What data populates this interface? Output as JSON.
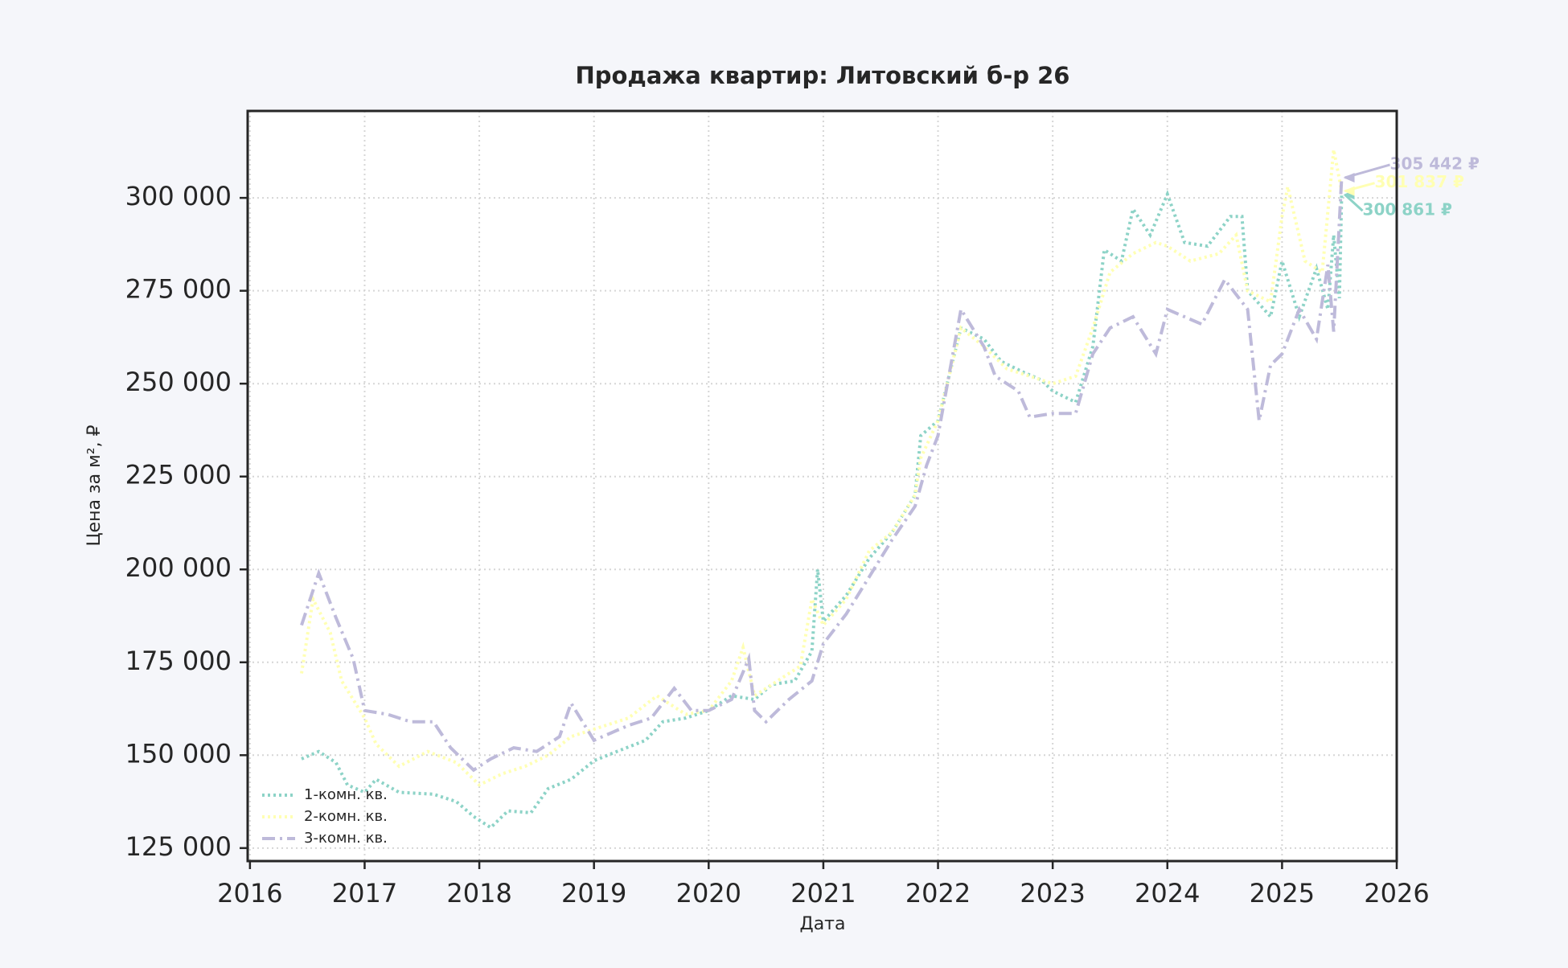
{
  "chart_data": {
    "type": "line",
    "title": "Продажа квартир: Литовский б-р 26",
    "xlabel": "Дата",
    "ylabel": "Цена за м², ₽",
    "xlim": [
      2015.98,
      2026
    ],
    "xticks": [
      2016,
      2017,
      2018,
      2019,
      2020,
      2021,
      2022,
      2023,
      2024,
      2025,
      2026
    ],
    "ylim": [
      121500,
      323400
    ],
    "yticks": [
      {
        "value": 125000,
        "label": "125 000"
      },
      {
        "value": 150000,
        "label": "150 000"
      },
      {
        "value": 175000,
        "label": "175 000"
      },
      {
        "value": 200000,
        "label": "200 000"
      },
      {
        "value": 225000,
        "label": "225 000"
      },
      {
        "value": 250000,
        "label": "250 000"
      },
      {
        "value": 275000,
        "label": "275 000"
      },
      {
        "value": 300000,
        "label": "300 000"
      }
    ],
    "grid": true,
    "legend": "lower left",
    "series": [
      {
        "name": "1-комн. кв.",
        "color": "#8dd3c7",
        "linestyle": "dotted",
        "end_label": "300 861 ₽",
        "x": [
          2016.45,
          2016.6,
          2016.75,
          2016.85,
          2017.0,
          2017.1,
          2017.3,
          2017.6,
          2017.8,
          2017.95,
          2018.1,
          2018.25,
          2018.45,
          2018.6,
          2018.8,
          2019.0,
          2019.2,
          2019.45,
          2019.6,
          2019.8,
          2020.0,
          2020.2,
          2020.4,
          2020.55,
          2020.75,
          2020.9,
          2020.95,
          2021.0,
          2021.2,
          2021.4,
          2021.6,
          2021.8,
          2021.85,
          2022.0,
          2022.2,
          2022.4,
          2022.55,
          2022.75,
          2022.9,
          2023.0,
          2023.2,
          2023.35,
          2023.45,
          2023.6,
          2023.7,
          2023.85,
          2024.0,
          2024.15,
          2024.35,
          2024.55,
          2024.65,
          2024.7,
          2024.9,
          2025.0,
          2025.15,
          2025.3,
          2025.4,
          2025.45,
          2025.5,
          2025.52
        ],
        "values": [
          149000,
          151000,
          148000,
          142000,
          140000,
          143500,
          140000,
          139500,
          137500,
          133500,
          130500,
          135000,
          134500,
          141000,
          143500,
          148500,
          151000,
          154000,
          159000,
          160000,
          162000,
          166000,
          165000,
          169000,
          170000,
          178000,
          200000,
          186000,
          193000,
          203000,
          210000,
          220000,
          236000,
          240000,
          265000,
          262000,
          256000,
          253000,
          251000,
          248000,
          245000,
          260000,
          286000,
          283000,
          297000,
          290000,
          301000,
          288000,
          287000,
          295000,
          295000,
          275000,
          268000,
          283000,
          268000,
          281000,
          270000,
          290000,
          273000,
          300861
        ]
      },
      {
        "name": "2-комн. кв.",
        "color": "#ffffb3",
        "linestyle": "dotted",
        "end_label": "301 837 ₽",
        "x": [
          2016.45,
          2016.55,
          2016.7,
          2016.8,
          2017.0,
          2017.1,
          2017.3,
          2017.55,
          2017.8,
          2018.0,
          2018.2,
          2018.4,
          2018.6,
          2018.8,
          2019.0,
          2019.3,
          2019.55,
          2019.8,
          2020.0,
          2020.2,
          2020.3,
          2020.4,
          2020.6,
          2020.8,
          2020.9,
          2021.0,
          2021.2,
          2021.4,
          2021.6,
          2021.8,
          2021.85,
          2022.0,
          2022.2,
          2022.4,
          2022.6,
          2022.8,
          2023.0,
          2023.2,
          2023.35,
          2023.5,
          2023.7,
          2023.9,
          2024.0,
          2024.2,
          2024.45,
          2024.6,
          2024.7,
          2024.9,
          2025.0,
          2025.05,
          2025.2,
          2025.35,
          2025.45,
          2025.52
        ],
        "values": [
          172000,
          192000,
          183000,
          170000,
          160000,
          153000,
          147000,
          151000,
          148000,
          142000,
          145000,
          147000,
          150000,
          155000,
          157000,
          160000,
          166000,
          161000,
          162000,
          170000,
          179000,
          166000,
          170000,
          174000,
          192000,
          185000,
          192000,
          205000,
          210000,
          220000,
          230000,
          240000,
          265000,
          260000,
          254000,
          252000,
          250000,
          252000,
          265000,
          280000,
          285000,
          288000,
          287000,
          283000,
          285000,
          290000,
          275000,
          272000,
          295000,
          303000,
          283000,
          280000,
          313000,
          301837
        ]
      },
      {
        "name": "3-комн. кв.",
        "color": "#bebada",
        "linestyle": "dashdot",
        "end_label": "305 442 ₽",
        "x": [
          2016.45,
          2016.6,
          2016.75,
          2016.9,
          2017.0,
          2017.2,
          2017.4,
          2017.6,
          2017.75,
          2017.95,
          2018.1,
          2018.3,
          2018.5,
          2018.7,
          2018.8,
          2019.0,
          2019.3,
          2019.5,
          2019.7,
          2019.85,
          2020.0,
          2020.2,
          2020.35,
          2020.4,
          2020.5,
          2020.7,
          2020.9,
          2021.0,
          2021.2,
          2021.4,
          2021.6,
          2021.8,
          2021.9,
          2022.0,
          2022.2,
          2022.4,
          2022.5,
          2022.7,
          2022.8,
          2023.0,
          2023.2,
          2023.35,
          2023.5,
          2023.7,
          2023.9,
          2024.0,
          2024.3,
          2024.5,
          2024.7,
          2024.8,
          2024.9,
          2025.0,
          2025.15,
          2025.3,
          2025.4,
          2025.45,
          2025.52
        ],
        "values": [
          185000,
          199000,
          187000,
          176000,
          162000,
          161000,
          159000,
          159000,
          152000,
          146000,
          149000,
          152000,
          151000,
          155000,
          164000,
          154000,
          158000,
          160000,
          168000,
          162000,
          162000,
          165000,
          176000,
          162000,
          159000,
          165000,
          170000,
          180000,
          188000,
          198000,
          208000,
          217000,
          228000,
          236000,
          270000,
          260000,
          252000,
          248000,
          241000,
          242000,
          242000,
          258000,
          265000,
          268000,
          258000,
          270000,
          266000,
          278000,
          270000,
          240000,
          255000,
          258000,
          270000,
          262000,
          282000,
          264000,
          305442
        ]
      }
    ]
  }
}
